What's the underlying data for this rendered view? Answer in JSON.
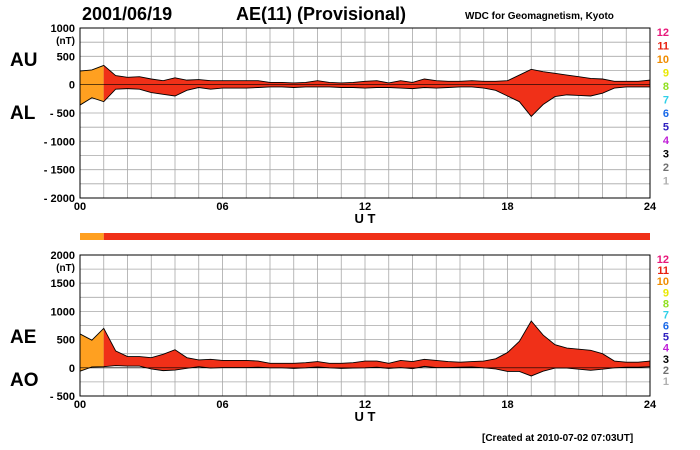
{
  "header": {
    "date": "2001/06/19",
    "title": "AE(11) (Provisional)",
    "source": "WDC for Geomagnetism, Kyoto"
  },
  "footer": {
    "created": "[Created at 2010-07-02 07:03UT]"
  },
  "colors": {
    "fill_main": "#f03018",
    "fill_early": "#ffa020",
    "status_early": "#ffa020",
    "status_main": "#f03018",
    "grid": "#a8a8a8",
    "outline": "#000000"
  },
  "legend_levels": [
    {
      "label": "12",
      "color": "#e8187a"
    },
    {
      "label": "11",
      "color": "#e82010"
    },
    {
      "label": "10",
      "color": "#f08c00"
    },
    {
      "label": "9",
      "color": "#e8e800"
    },
    {
      "label": "8",
      "color": "#90e020"
    },
    {
      "label": "7",
      "color": "#30d0e8"
    },
    {
      "label": "6",
      "color": "#1868e8"
    },
    {
      "label": "5",
      "color": "#3020c0"
    },
    {
      "label": "4",
      "color": "#c020d8"
    },
    {
      "label": "3",
      "color": "#000000"
    },
    {
      "label": "2",
      "color": "#707070"
    },
    {
      "label": "1",
      "color": "#b0b0b0"
    }
  ],
  "status_bar": {
    "early_end_hour": 1.0
  },
  "chart_data": [
    {
      "type": "area",
      "series_labels": [
        "AU",
        "AL"
      ],
      "xlabel": "U T",
      "ylabel": "(nT)",
      "xlim": [
        0,
        24
      ],
      "ylim": [
        -2000,
        1000
      ],
      "x_ticks": [
        "00",
        "06",
        "12",
        "18",
        "24"
      ],
      "y_ticks": [
        "1000",
        "500",
        "0",
        "- 500",
        "- 1000",
        "- 1500",
        "- 2000"
      ],
      "grid": true,
      "x": [
        0,
        0.5,
        1,
        1.5,
        2,
        2.5,
        3,
        3.5,
        4,
        4.5,
        5,
        5.5,
        6,
        6.5,
        7,
        7.5,
        8,
        8.5,
        9,
        9.5,
        10,
        10.5,
        11,
        11.5,
        12,
        12.5,
        13,
        13.5,
        14,
        14.5,
        15,
        15.5,
        16,
        16.5,
        17,
        17.5,
        18,
        18.5,
        19,
        19.5,
        20,
        20.5,
        21,
        21.5,
        22,
        22.5,
        23,
        23.5,
        24
      ],
      "series": [
        {
          "name": "AU",
          "values": [
            240,
            260,
            340,
            160,
            130,
            140,
            100,
            70,
            120,
            80,
            90,
            70,
            70,
            70,
            70,
            70,
            40,
            40,
            30,
            40,
            70,
            40,
            30,
            40,
            60,
            70,
            30,
            70,
            40,
            100,
            70,
            60,
            60,
            70,
            60,
            60,
            70,
            170,
            270,
            230,
            200,
            170,
            140,
            110,
            100,
            60,
            60,
            60,
            80
          ]
        },
        {
          "name": "AL",
          "values": [
            -360,
            -230,
            -300,
            -80,
            -70,
            -80,
            -140,
            -170,
            -200,
            -100,
            -50,
            -80,
            -60,
            -60,
            -60,
            -50,
            -40,
            -40,
            -50,
            -40,
            -40,
            -40,
            -50,
            -50,
            -60,
            -50,
            -50,
            -60,
            -70,
            -50,
            -60,
            -50,
            -40,
            -40,
            -60,
            -100,
            -200,
            -300,
            -560,
            -350,
            -210,
            -180,
            -190,
            -200,
            -150,
            -60,
            -40,
            -40,
            -40
          ]
        }
      ]
    },
    {
      "type": "area",
      "series_labels": [
        "AE",
        "AO"
      ],
      "xlabel": "U T",
      "ylabel": "(nT)",
      "xlim": [
        0,
        24
      ],
      "ylim": [
        -500,
        2000
      ],
      "x_ticks": [
        "00",
        "06",
        "12",
        "18",
        "24"
      ],
      "y_ticks": [
        "2000",
        "1500",
        "1000",
        "500",
        "0",
        "- 500"
      ],
      "grid": true,
      "x": [
        0,
        0.5,
        1,
        1.5,
        2,
        2.5,
        3,
        3.5,
        4,
        4.5,
        5,
        5.5,
        6,
        6.5,
        7,
        7.5,
        8,
        8.5,
        9,
        9.5,
        10,
        10.5,
        11,
        11.5,
        12,
        12.5,
        13,
        13.5,
        14,
        14.5,
        15,
        15.5,
        16,
        16.5,
        17,
        17.5,
        18,
        18.5,
        19,
        19.5,
        20,
        20.5,
        21,
        21.5,
        22,
        22.5,
        23,
        23.5,
        24
      ],
      "series": [
        {
          "name": "AE",
          "values": [
            600,
            490,
            700,
            300,
            200,
            200,
            180,
            240,
            320,
            180,
            140,
            150,
            130,
            130,
            130,
            120,
            80,
            80,
            80,
            90,
            110,
            80,
            80,
            90,
            120,
            120,
            80,
            130,
            110,
            150,
            130,
            110,
            100,
            110,
            120,
            160,
            270,
            470,
            830,
            580,
            410,
            350,
            330,
            310,
            250,
            120,
            100,
            100,
            120
          ]
        },
        {
          "name": "AO",
          "values": [
            -60,
            15,
            20,
            40,
            30,
            30,
            -20,
            -50,
            -40,
            -10,
            20,
            -5,
            5,
            5,
            5,
            10,
            0,
            0,
            -10,
            0,
            15,
            0,
            -10,
            -5,
            0,
            10,
            -10,
            5,
            -15,
            25,
            5,
            5,
            10,
            15,
            0,
            -20,
            -65,
            -65,
            -145,
            -60,
            -5,
            -5,
            -25,
            -45,
            -25,
            0,
            10,
            10,
            20
          ]
        }
      ]
    }
  ]
}
